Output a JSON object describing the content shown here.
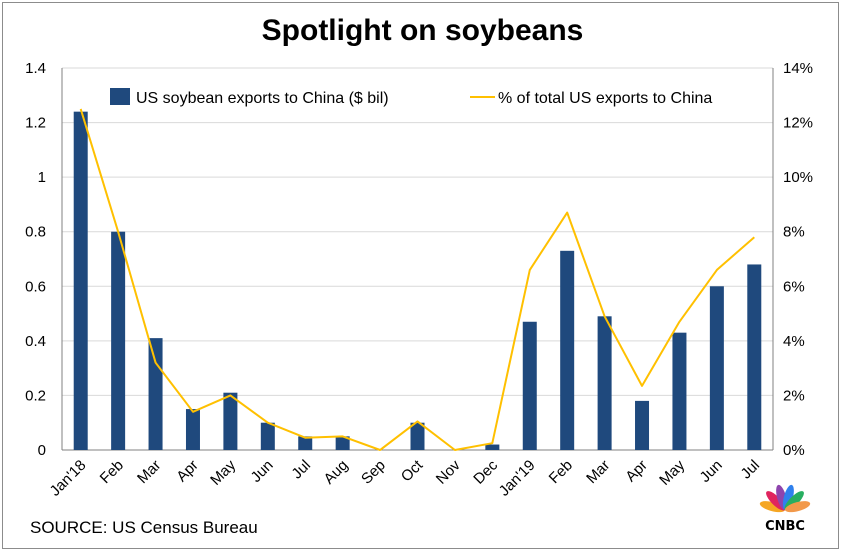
{
  "chart_data": {
    "type": "bar",
    "title": "Spotlight on soybeans",
    "categories": [
      "Jan'18",
      "Feb",
      "Mar",
      "Apr",
      "May",
      "Jun",
      "Jul",
      "Aug",
      "Sep",
      "Oct",
      "Nov",
      "Dec",
      "Jan'19",
      "Feb",
      "Mar",
      "Apr",
      "May",
      "Jun",
      "Jul"
    ],
    "series": [
      {
        "name": "US soybean exports to China ($ bil)",
        "type": "bar",
        "axis": "left",
        "color": "#1f497d",
        "values": [
          1.24,
          0.8,
          0.41,
          0.15,
          0.21,
          0.1,
          0.05,
          0.05,
          0.0,
          0.1,
          0.0,
          0.02,
          0.47,
          0.73,
          0.49,
          0.18,
          0.43,
          0.6,
          0.68
        ]
      },
      {
        "name": "% of total US exports to China",
        "type": "line",
        "axis": "right",
        "color": "#ffc000",
        "values": [
          12.5,
          8.0,
          3.2,
          1.4,
          2.0,
          1.0,
          0.45,
          0.5,
          0.0,
          1.05,
          0.0,
          0.25,
          6.6,
          8.7,
          4.9,
          2.35,
          4.7,
          6.6,
          7.8
        ]
      }
    ],
    "ylim": [
      0,
      1.4
    ],
    "yticks": [
      "0",
      "0.2",
      "0.4",
      "0.6",
      "0.8",
      "1",
      "1.2",
      "1.4"
    ],
    "y2lim": [
      0,
      14
    ],
    "y2ticks": [
      "0%",
      "2%",
      "4%",
      "6%",
      "8%",
      "10%",
      "12%",
      "14%"
    ],
    "grid": true,
    "legend": "top"
  },
  "source": "SOURCE: US Census Bureau",
  "logo": {
    "text": "CNBC",
    "colors": [
      "#f5a623",
      "#e0245e",
      "#8e44ad",
      "#2f80ed",
      "#27ae60",
      "#f2994a"
    ]
  }
}
